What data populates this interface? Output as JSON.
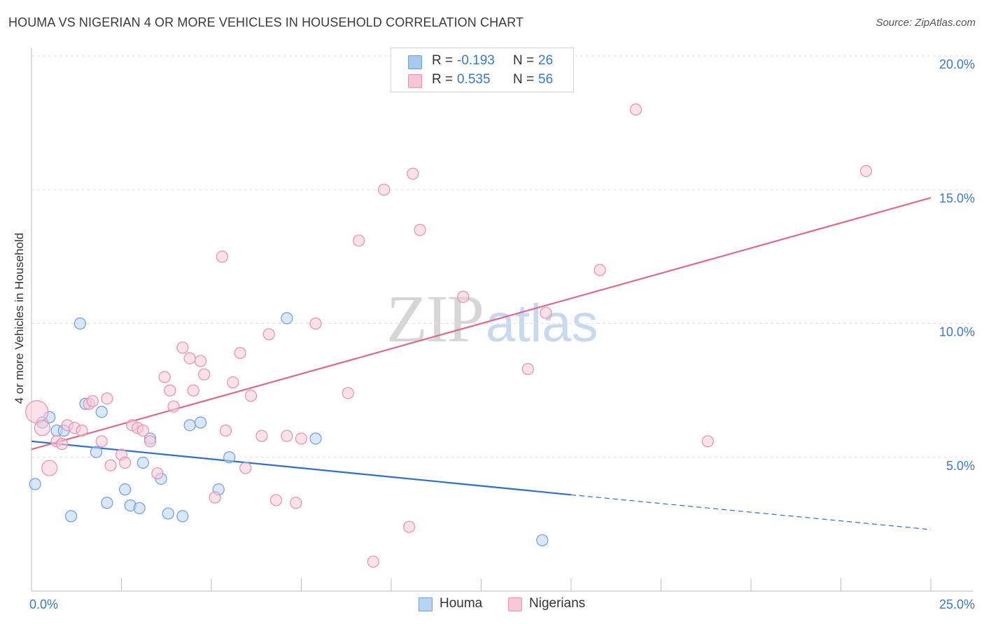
{
  "title": "HOUMA VS NIGERIAN 4 OR MORE VEHICLES IN HOUSEHOLD CORRELATION CHART",
  "source": "Source: ZipAtlas.com",
  "watermark": {
    "zip": "ZIP",
    "atlas": "atlas"
  },
  "legend": {
    "rows": [
      {
        "r_label": "R =",
        "r_value": "-0.193",
        "n_label": "N =",
        "n_value": "26",
        "color": "#a9c8ee",
        "border": "#6c9fdc"
      },
      {
        "r_label": "R =",
        "r_value": "0.535",
        "n_label": "N =",
        "n_value": "56",
        "color": "#f7c5d5",
        "border": "#e890ae"
      }
    ]
  },
  "bottom_legend": {
    "houma": "Houma",
    "nigerians": "Nigerians"
  },
  "chart_data": {
    "type": "scatter",
    "title": "HOUMA VS NIGERIAN 4 OR MORE VEHICLES IN HOUSEHOLD CORRELATION CHART",
    "xlabel": "",
    "ylabel": "4 or more Vehicles in Household",
    "xlim": [
      0,
      25
    ],
    "ylim": [
      0,
      20
    ],
    "x_tick_labels": [
      "0.0%",
      "25.0%"
    ],
    "y_ticks": [
      5,
      10,
      15,
      20
    ],
    "y_tick_labels": [
      "5.0%",
      "10.0%",
      "15.0%",
      "20.0%"
    ],
    "grid": true,
    "series": [
      {
        "name": "Houma",
        "color": "#6c9fdc",
        "fill": "#b9d3f2",
        "trend_color": "#2e6fcf",
        "trend": {
          "x0": 0,
          "y0": 5.6,
          "x1": 15,
          "y1": 3.6,
          "dash_x1": 25,
          "dash_y1": 2.3
        },
        "points": [
          [
            0.1,
            4.0
          ],
          [
            0.3,
            6.3
          ],
          [
            0.5,
            6.5
          ],
          [
            0.7,
            6.0
          ],
          [
            0.9,
            6.0
          ],
          [
            1.1,
            2.8
          ],
          [
            1.35,
            10.0
          ],
          [
            1.5,
            7.0
          ],
          [
            1.8,
            5.2
          ],
          [
            1.95,
            6.7
          ],
          [
            2.1,
            3.3
          ],
          [
            2.6,
            3.8
          ],
          [
            2.75,
            3.2
          ],
          [
            3.0,
            3.1
          ],
          [
            3.1,
            4.8
          ],
          [
            3.3,
            5.7
          ],
          [
            3.6,
            4.2
          ],
          [
            3.8,
            2.9
          ],
          [
            4.2,
            2.8
          ],
          [
            4.4,
            6.2
          ],
          [
            4.7,
            6.3
          ],
          [
            5.2,
            3.8
          ],
          [
            5.5,
            5.0
          ],
          [
            7.1,
            10.2
          ],
          [
            7.9,
            5.7
          ],
          [
            14.2,
            1.9
          ]
        ]
      },
      {
        "name": "Nigerians",
        "color": "#e890ae",
        "fill": "#f8c8d8",
        "trend_color": "#e06890",
        "trend": {
          "x0": 0,
          "y0": 5.3,
          "x1": 25,
          "y1": 14.7
        },
        "points": [
          [
            0.15,
            6.7
          ],
          [
            0.3,
            6.1
          ],
          [
            0.5,
            4.6
          ],
          [
            0.7,
            5.6
          ],
          [
            0.85,
            5.5
          ],
          [
            1.0,
            6.2
          ],
          [
            1.2,
            6.1
          ],
          [
            1.4,
            6.0
          ],
          [
            1.6,
            7.0
          ],
          [
            1.7,
            7.1
          ],
          [
            1.95,
            5.6
          ],
          [
            2.1,
            7.2
          ],
          [
            2.2,
            4.7
          ],
          [
            2.5,
            5.1
          ],
          [
            2.6,
            4.8
          ],
          [
            2.8,
            6.2
          ],
          [
            2.95,
            6.1
          ],
          [
            3.1,
            6.0
          ],
          [
            3.3,
            5.6
          ],
          [
            3.5,
            4.4
          ],
          [
            3.7,
            8.0
          ],
          [
            3.85,
            7.5
          ],
          [
            3.95,
            6.9
          ],
          [
            4.2,
            9.1
          ],
          [
            4.4,
            8.7
          ],
          [
            4.5,
            7.5
          ],
          [
            4.7,
            8.6
          ],
          [
            4.8,
            8.1
          ],
          [
            5.1,
            3.5
          ],
          [
            5.3,
            12.5
          ],
          [
            5.4,
            6.0
          ],
          [
            5.6,
            7.8
          ],
          [
            5.8,
            8.9
          ],
          [
            5.95,
            4.6
          ],
          [
            6.1,
            7.3
          ],
          [
            6.4,
            5.8
          ],
          [
            6.6,
            9.6
          ],
          [
            6.8,
            3.4
          ],
          [
            7.1,
            5.8
          ],
          [
            7.35,
            3.3
          ],
          [
            7.5,
            5.7
          ],
          [
            7.9,
            10.0
          ],
          [
            8.8,
            7.4
          ],
          [
            9.1,
            13.1
          ],
          [
            9.5,
            1.1
          ],
          [
            9.8,
            15.0
          ],
          [
            10.5,
            2.4
          ],
          [
            10.6,
            15.6
          ],
          [
            10.8,
            13.5
          ],
          [
            12.0,
            11.0
          ],
          [
            13.8,
            8.3
          ],
          [
            14.3,
            10.4
          ],
          [
            15.8,
            12.0
          ],
          [
            16.8,
            18.0
          ],
          [
            18.8,
            5.6
          ],
          [
            23.2,
            15.7
          ]
        ]
      }
    ]
  }
}
